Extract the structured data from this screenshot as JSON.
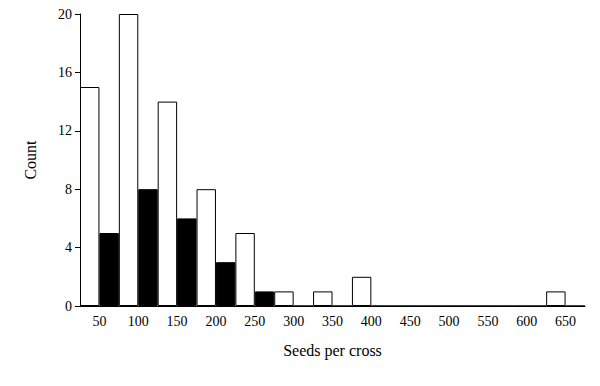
{
  "chart_data": {
    "type": "bar",
    "x_label": "Seeds per cross",
    "y_label": "Count",
    "categories": [
      50,
      100,
      150,
      200,
      250,
      300,
      350,
      400,
      450,
      500,
      550,
      600,
      650
    ],
    "series": [
      {
        "color": "#ffffff",
        "values": [
          15,
          20,
          14,
          8,
          5,
          1,
          1,
          2,
          0,
          0,
          0,
          0,
          1
        ]
      },
      {
        "color": "#000000",
        "values": [
          5,
          8,
          6,
          3,
          1,
          0,
          0,
          0,
          0,
          0,
          0,
          0,
          0
        ]
      }
    ],
    "ylim": [
      0,
      20
    ],
    "yticks": [
      0,
      4,
      8,
      12,
      16,
      20
    ],
    "grid": false
  }
}
